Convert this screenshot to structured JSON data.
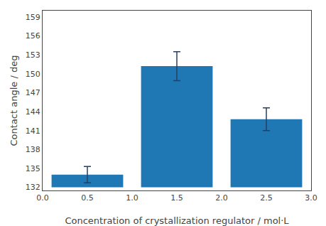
{
  "chart_data": {
    "type": "bar",
    "x": [
      0.5,
      1.5,
      2.5
    ],
    "values": [
      134.0,
      151.2,
      142.8
    ],
    "errors": [
      1.3,
      2.3,
      1.8
    ],
    "base": 132.0,
    "xlim": [
      0.0,
      3.0
    ],
    "xticks": [
      {
        "value": 0.0,
        "label": "0.0"
      },
      0.5,
      {
        "value": 1.0,
        "label": "1.0"
      },
      1.5,
      {
        "value": 2.0,
        "label": "2.0"
      },
      2.5,
      {
        "value": 3.0,
        "label": "3.0"
      }
    ],
    "ylim": [
      131.5,
      160.0
    ],
    "yticks": [
      132,
      135,
      138,
      141,
      144,
      147,
      150,
      153,
      156,
      159
    ],
    "xlabel": "Concentration of crystallization regulator / mol·L",
    "ylabel": "Contact angle / deg",
    "grid": false
  }
}
